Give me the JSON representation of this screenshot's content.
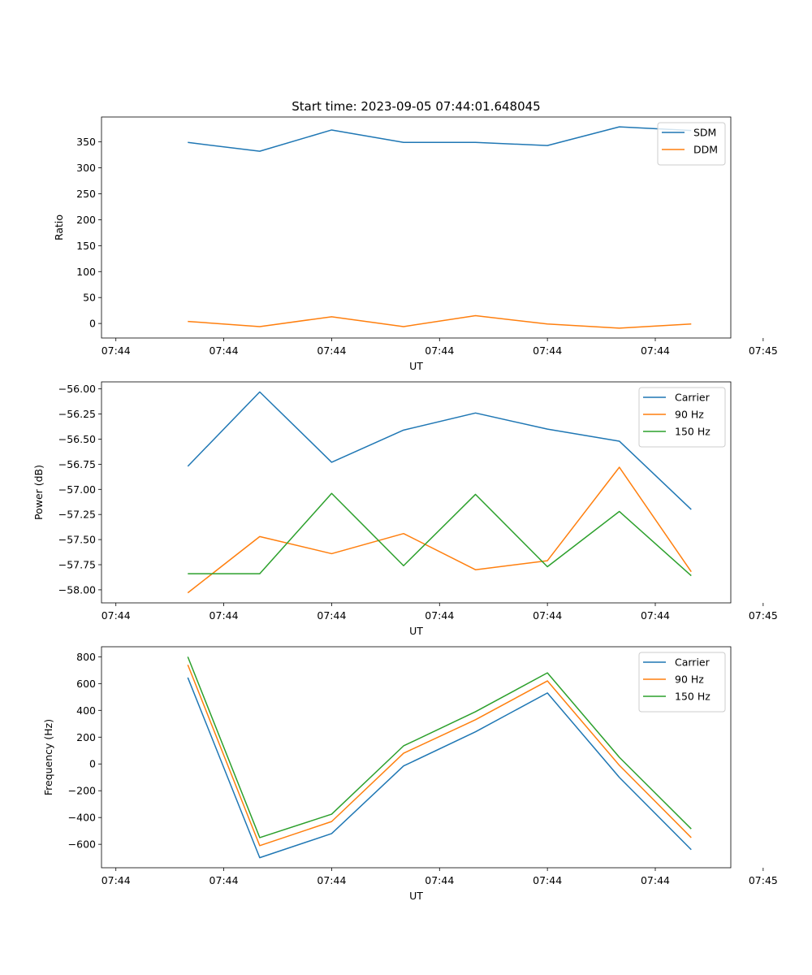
{
  "figure_title": "Start time: 2023-09-05 07:44:01.648045",
  "chart_data": [
    {
      "type": "line",
      "xlabel": "UT",
      "ylabel": "Ratio",
      "xlim": [
        -0.2,
        8.55
      ],
      "ylim": [
        -28,
        398
      ],
      "x": [
        1,
        2,
        3,
        4,
        5,
        6,
        7,
        8
      ],
      "xticks": [
        0,
        1.5,
        3,
        4.5,
        6,
        7.5,
        9
      ],
      "xtick_labels": [
        "07:44",
        "07:44",
        "07:44",
        "07:44",
        "07:44",
        "07:44",
        "07:45"
      ],
      "yticks": [
        0,
        50,
        100,
        150,
        200,
        250,
        300,
        350
      ],
      "ytick_labels": [
        "0",
        "50",
        "100",
        "150",
        "200",
        "250",
        "300",
        "350"
      ],
      "legend_position": "top-right",
      "series": [
        {
          "name": "SDM",
          "color": "#1f77b4",
          "values": [
            349,
            332,
            373,
            349,
            349,
            343,
            379,
            372
          ]
        },
        {
          "name": "DDM",
          "color": "#ff7f0e",
          "values": [
            4,
            -6,
            13,
            -6,
            15,
            -1,
            -9,
            -1
          ]
        }
      ]
    },
    {
      "type": "line",
      "xlabel": "UT",
      "ylabel": "Power (dB)",
      "xlim": [
        -0.2,
        8.55
      ],
      "ylim": [
        -58.13,
        -55.93
      ],
      "x": [
        1,
        2,
        3,
        4,
        5,
        6,
        7,
        8
      ],
      "xticks": [
        0,
        1.5,
        3,
        4.5,
        6,
        7.5,
        9
      ],
      "xtick_labels": [
        "07:44",
        "07:44",
        "07:44",
        "07:44",
        "07:44",
        "07:44",
        "07:45"
      ],
      "yticks": [
        -58.0,
        -57.75,
        -57.5,
        -57.25,
        -57.0,
        -56.75,
        -56.5,
        -56.25,
        -56.0
      ],
      "ytick_labels": [
        "−58.00",
        "−57.75",
        "−57.50",
        "−57.25",
        "−57.00",
        "−56.75",
        "−56.50",
        "−56.25",
        "−56.00"
      ],
      "legend_position": "top-right",
      "series": [
        {
          "name": "Carrier",
          "color": "#1f77b4",
          "values": [
            -56.77,
            -56.03,
            -56.73,
            -56.41,
            -56.24,
            -56.4,
            -56.52,
            -57.2
          ]
        },
        {
          "name": "90 Hz",
          "color": "#ff7f0e",
          "values": [
            -58.03,
            -57.47,
            -57.64,
            -57.44,
            -57.8,
            -57.71,
            -56.78,
            -57.82
          ]
        },
        {
          "name": "150 Hz",
          "color": "#2ca02c",
          "values": [
            -57.84,
            -57.84,
            -57.04,
            -57.76,
            -57.05,
            -57.77,
            -57.22,
            -57.86
          ]
        }
      ]
    },
    {
      "type": "line",
      "xlabel": "UT",
      "ylabel": "Frequency (Hz)",
      "xlim": [
        -0.2,
        8.55
      ],
      "ylim": [
        -775,
        875
      ],
      "x": [
        1,
        2,
        3,
        4,
        5,
        6,
        7,
        8
      ],
      "xticks": [
        0,
        1.5,
        3,
        4.5,
        6,
        7.5,
        9
      ],
      "xtick_labels": [
        "07:44",
        "07:44",
        "07:44",
        "07:44",
        "07:44",
        "07:44",
        "07:45"
      ],
      "yticks": [
        -600,
        -400,
        -200,
        0,
        200,
        400,
        600,
        800
      ],
      "ytick_labels": [
        "−600",
        "−400",
        "−200",
        "0",
        "200",
        "400",
        "600",
        "800"
      ],
      "legend_position": "top-right",
      "series": [
        {
          "name": "Carrier",
          "color": "#1f77b4",
          "values": [
            645,
            -700,
            -520,
            -15,
            240,
            530,
            -100,
            -640
          ]
        },
        {
          "name": "90 Hz",
          "color": "#ff7f0e",
          "values": [
            740,
            -610,
            -430,
            80,
            330,
            620,
            -10,
            -550
          ]
        },
        {
          "name": "150 Hz",
          "color": "#2ca02c",
          "values": [
            800,
            -550,
            -375,
            135,
            390,
            680,
            50,
            -485
          ]
        }
      ]
    }
  ]
}
